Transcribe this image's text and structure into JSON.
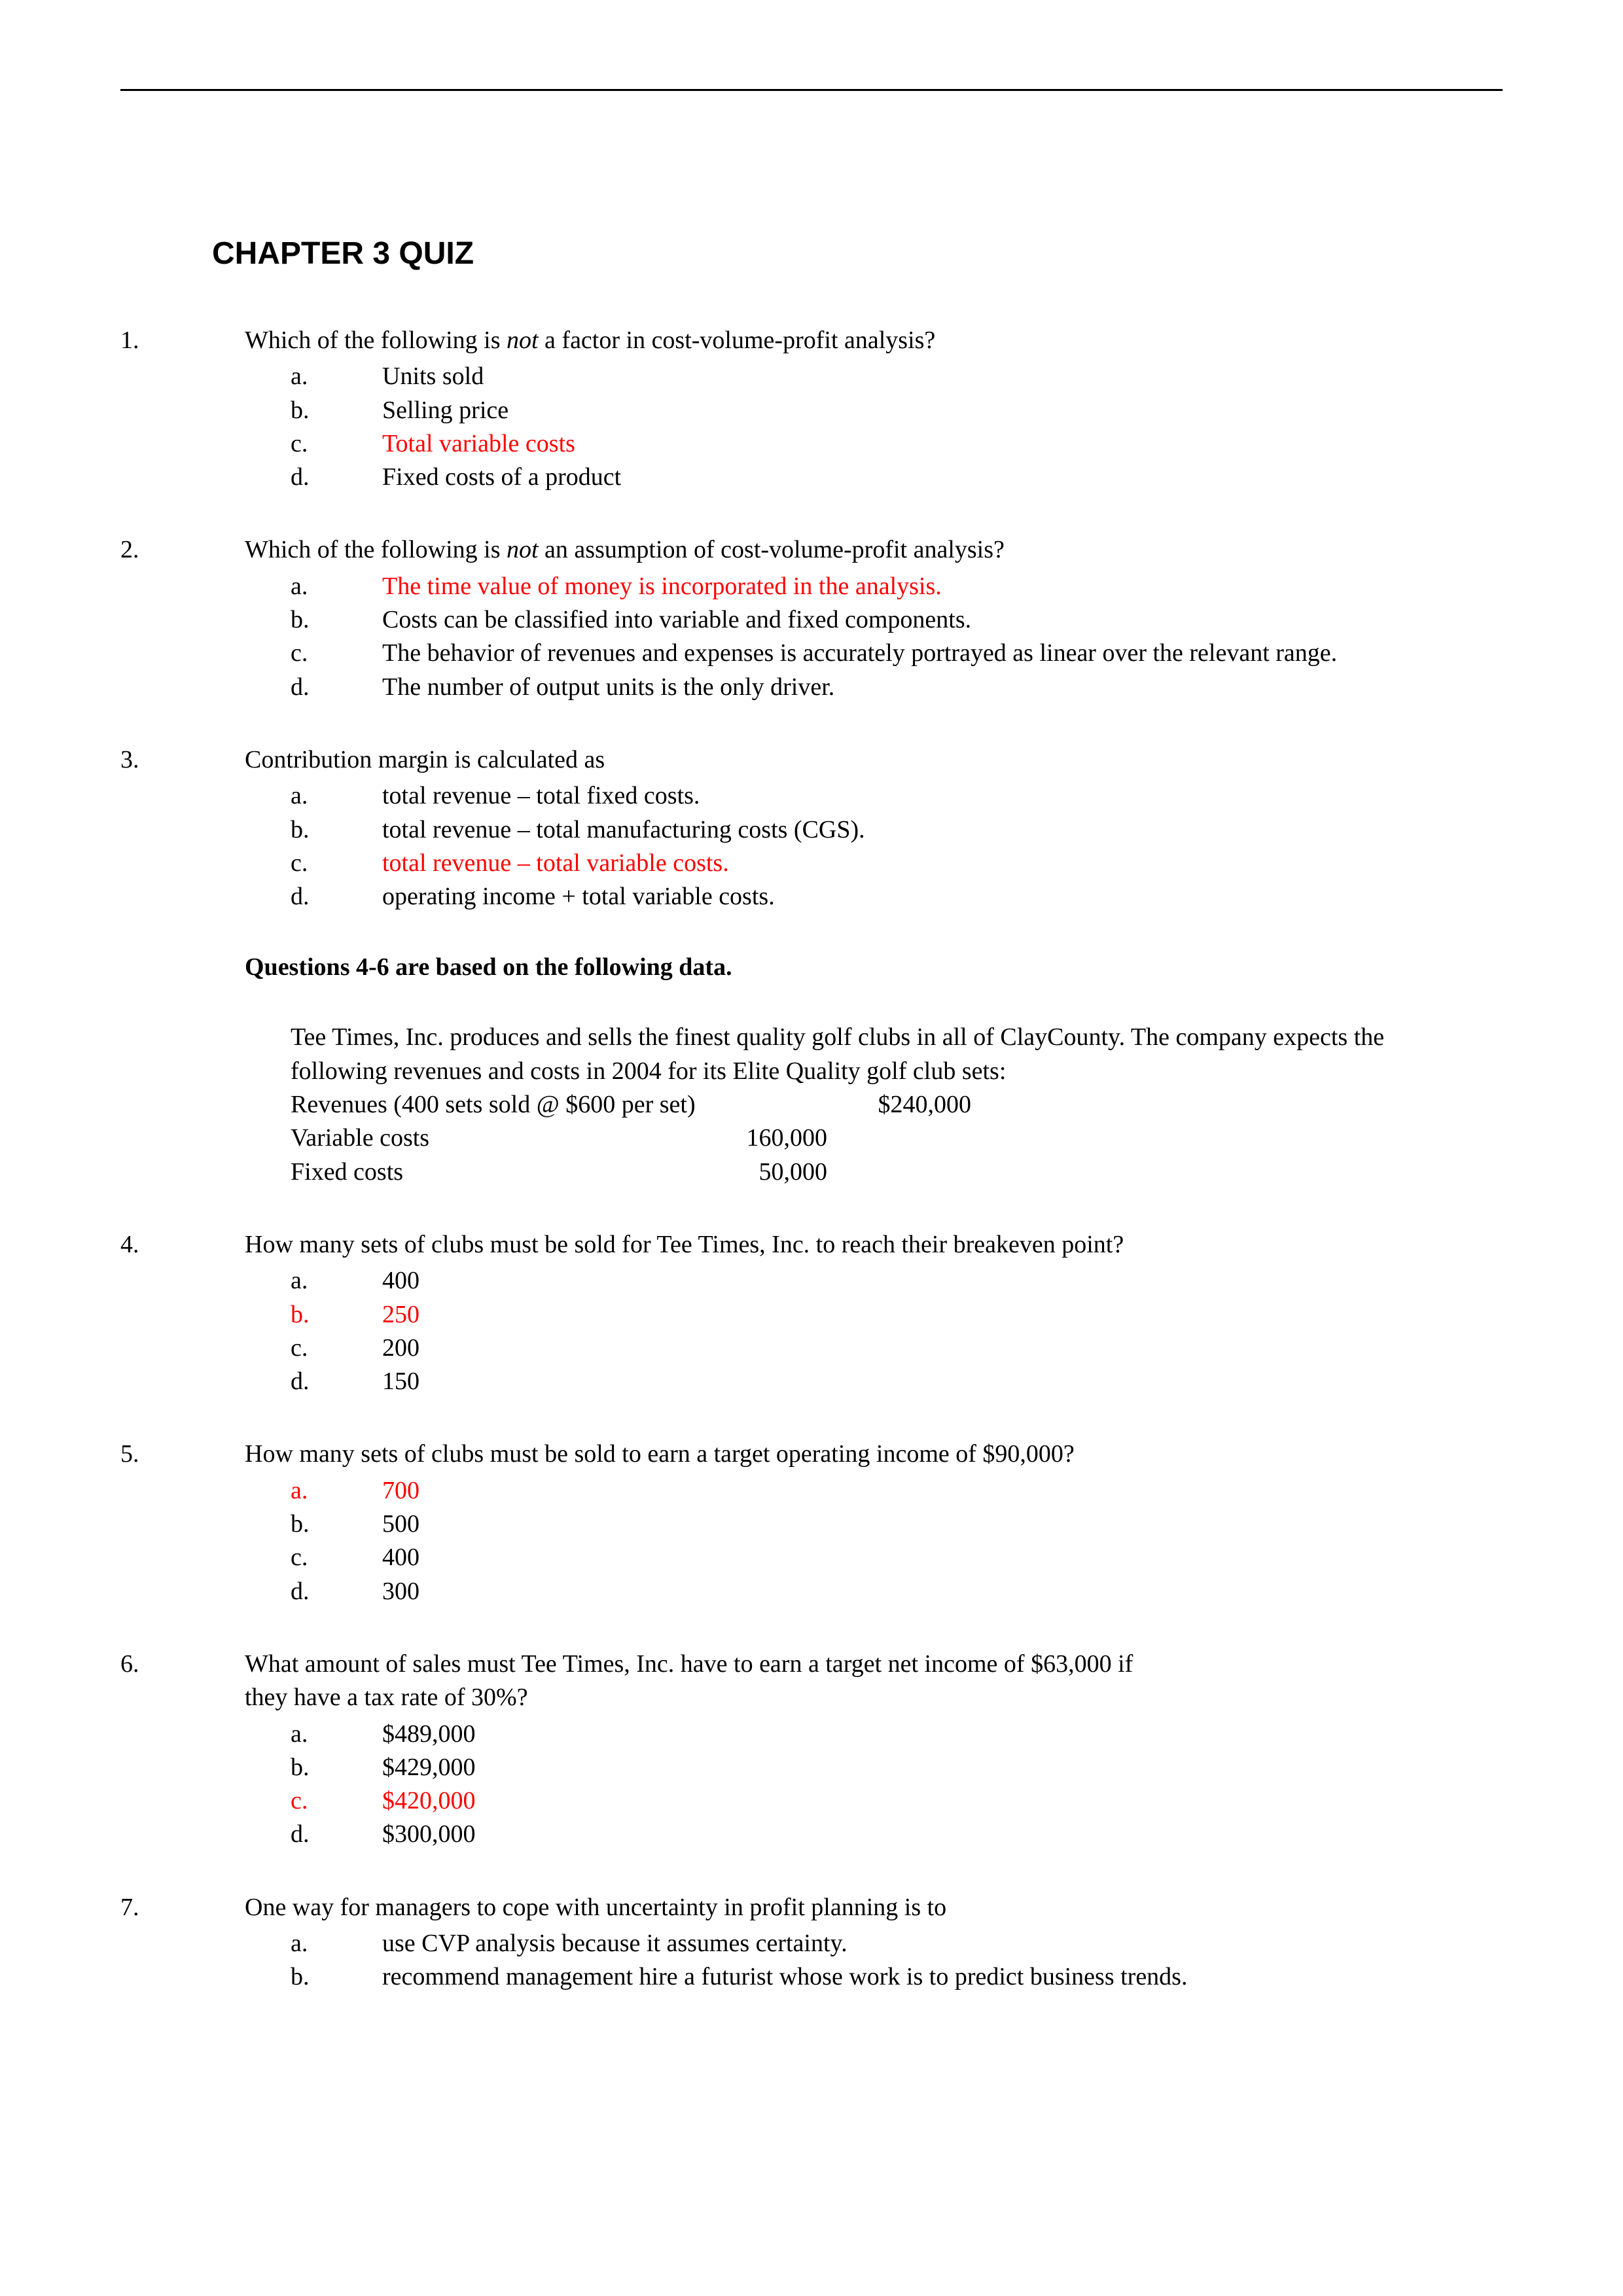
{
  "title": "CHAPTER 3 QUIZ",
  "answer_color": "#ff0000",
  "text_color": "#000000",
  "background_color": "#ffffff",
  "font_body": "Times New Roman",
  "font_title": "Arial",
  "questions": [
    {
      "num": "1.",
      "text_pre": "Which of the following is ",
      "text_em": "not",
      "text_post": " a factor in cost-volume-profit analysis?",
      "choices": [
        {
          "letter": "a.",
          "text": "Units sold",
          "red": false
        },
        {
          "letter": "b.",
          "text": "Selling price",
          "red": false
        },
        {
          "letter": "c.",
          "text": "Total variable costs",
          "red": true
        },
        {
          "letter": "d.",
          "text": "Fixed costs of a product",
          "red": false
        }
      ]
    },
    {
      "num": "2.",
      "text_pre": "Which of the following is ",
      "text_em": "not",
      "text_post": " an assumption of cost-volume-profit analysis?",
      "choices": [
        {
          "letter": "a.",
          "text": "The time value of money is incorporated in the analysis.",
          "red": true
        },
        {
          "letter": "b.",
          "text": "Costs can be classified into variable and fixed components.",
          "red": false
        },
        {
          "letter": "c.",
          "text": "The behavior of revenues and expenses is accurately portrayed as linear over the relevant range.",
          "red": false
        },
        {
          "letter": "d.",
          "text": "The number of output units is the only driver.",
          "red": false
        }
      ]
    },
    {
      "num": "3.",
      "text_pre": "Contribution margin is calculated as",
      "text_em": "",
      "text_post": "",
      "choices": [
        {
          "letter": "a.",
          "text": "total revenue – total fixed costs.",
          "red": false
        },
        {
          "letter": "b.",
          "text": "total revenue – total manufacturing costs (CGS).",
          "red": false
        },
        {
          "letter": "c.",
          "text": "total revenue – total variable costs.",
          "red": true
        },
        {
          "letter": "d.",
          "text": "operating income + total variable costs.",
          "red": false
        }
      ]
    }
  ],
  "section_heading": "Questions 4-6 are based on the following data.",
  "scenario_para": "Tee Times, Inc. produces and sells the finest quality golf clubs in all of ClayCounty. The company expects the following revenues and costs in 2004 for its Elite Quality golf club sets:",
  "data_rows": [
    {
      "c1": "Revenues (400 sets sold @ $600 per set)",
      "c2": "",
      "c3": "$240,000"
    },
    {
      "c1": "Variable costs",
      "c2": "160,000",
      "c3": ""
    },
    {
      "c1": "Fixed costs",
      "c2": "50,000",
      "c3": ""
    }
  ],
  "questions2": [
    {
      "num": "4.",
      "text": "How many sets of clubs must be sold for Tee Times, Inc. to reach their breakeven point?",
      "choices": [
        {
          "letter": "a.",
          "text": "400",
          "red": false
        },
        {
          "letter": "b.",
          "text": "250",
          "red": true
        },
        {
          "letter": "c.",
          "text": "200",
          "red": false
        },
        {
          "letter": "d.",
          "text": "150",
          "red": false
        }
      ]
    },
    {
      "num": "5.",
      "text": "How many sets of clubs must be sold to earn a target operating income of $90,000?",
      "choices": [
        {
          "letter": "a.",
          "text": "700",
          "red": true
        },
        {
          "letter": "b.",
          "text": "500",
          "red": false
        },
        {
          "letter": "c.",
          "text": "400",
          "red": false
        },
        {
          "letter": "d.",
          "text": "300",
          "red": false
        }
      ]
    },
    {
      "num": "6.",
      "text": "What amount of sales must Tee Times, Inc. have to earn a target net income of $63,000 if they have a tax rate of 30%?",
      "wrap": true,
      "choices": [
        {
          "letter": "a.",
          "text": "$489,000",
          "red": false
        },
        {
          "letter": "b.",
          "text": "$429,000",
          "red": false
        },
        {
          "letter": "c.",
          "text": "$420,000",
          "red": true
        },
        {
          "letter": "d.",
          "text": "$300,000",
          "red": false
        }
      ]
    },
    {
      "num": "7.",
      "text": "One way for managers to cope with uncertainty in profit planning is to",
      "choices": [
        {
          "letter": "a.",
          "text": "use CVP analysis because it assumes certainty.",
          "red": false
        },
        {
          "letter": "b.",
          "text": "recommend management hire a futurist whose work is to predict business trends.",
          "red": false
        }
      ]
    }
  ]
}
